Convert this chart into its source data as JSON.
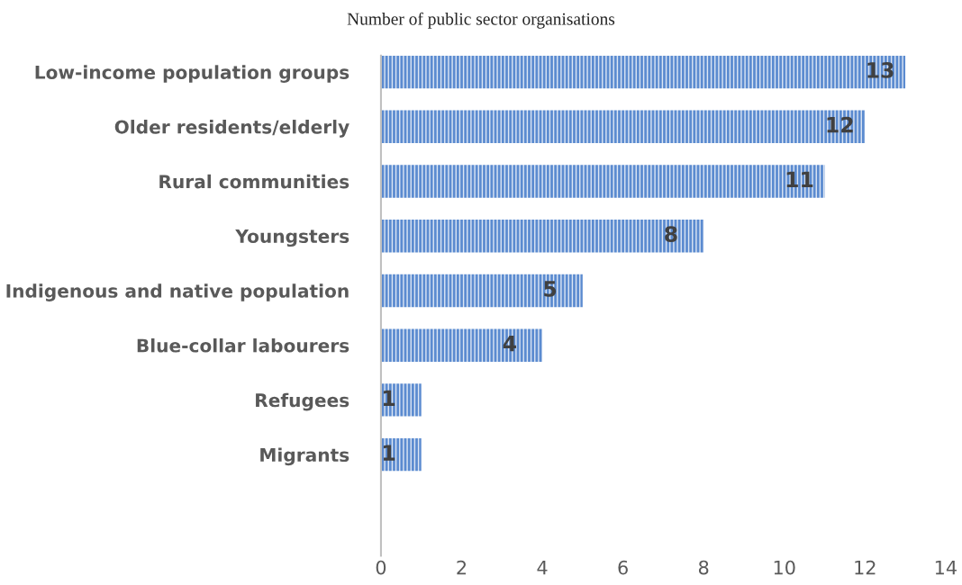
{
  "chart_data": {
    "type": "bar",
    "orientation": "horizontal",
    "title": "Number of public sector organisations",
    "categories": [
      "Low-income population groups",
      "Older residents/elderly",
      "Rural communities",
      "Youngsters",
      "Indigenous and native population",
      "Blue-collar labourers",
      "Refugees",
      "Migrants"
    ],
    "values": [
      13,
      12,
      11,
      8,
      5,
      4,
      1,
      1
    ],
    "color": "#5b8bd0",
    "xlim": [
      0,
      14
    ],
    "xticks": [
      0,
      2,
      4,
      6,
      8,
      10,
      12,
      14
    ],
    "data_labels": true,
    "grid": false,
    "legend": false
  }
}
